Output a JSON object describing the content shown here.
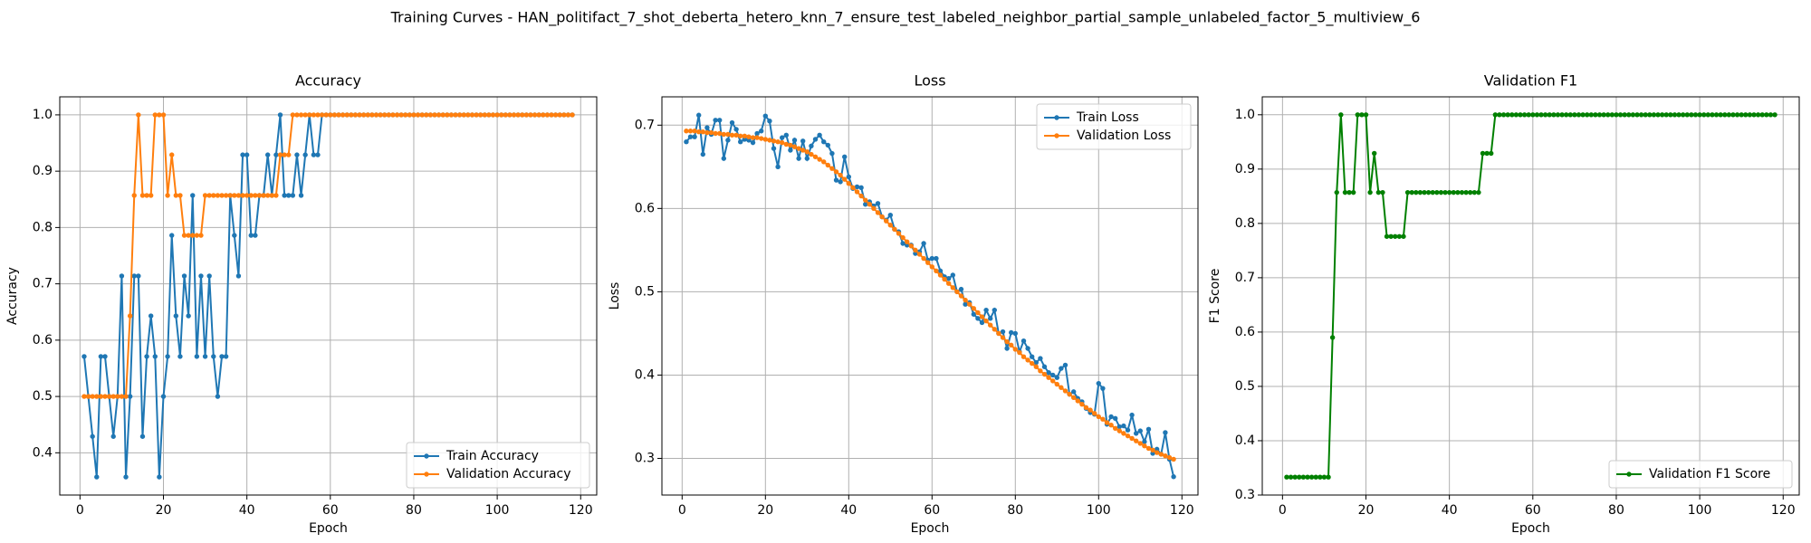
{
  "title": "Training Curves - HAN_politifact_7_shot_deberta_hetero_knn_7_ensure_test_labeled_neighbor_partial_sample_unlabeled_factor_5_multiview_6",
  "chart_data": [
    {
      "type": "line",
      "title": "Accuracy",
      "xlabel": "Epoch",
      "ylabel": "Accuracy",
      "grid": true,
      "legend": "lower right",
      "xlim": [
        -4.85,
        123.85
      ],
      "xticks": [
        0,
        20,
        40,
        60,
        80,
        100,
        120
      ],
      "ylim": [
        0.325,
        1.032
      ],
      "yticks": [
        0.4,
        0.5,
        0.6,
        0.7,
        0.8,
        0.9,
        {
          "value": 1,
          "label": "1.0"
        }
      ],
      "x": [
        1,
        2,
        3,
        4,
        5,
        6,
        7,
        8,
        9,
        10,
        11,
        12,
        13,
        14,
        15,
        16,
        17,
        18,
        19,
        20,
        21,
        22,
        23,
        24,
        25,
        26,
        27,
        28,
        29,
        30,
        31,
        32,
        33,
        34,
        35,
        36,
        37,
        38,
        39,
        40,
        41,
        42,
        43,
        44,
        45,
        46,
        47,
        48,
        49,
        50,
        51,
        52,
        53,
        54,
        55,
        56,
        57,
        58,
        59,
        60,
        61,
        62,
        63,
        64,
        65,
        66,
        67,
        68,
        69,
        70,
        71,
        72,
        73,
        74,
        75,
        76,
        77,
        78,
        79,
        80,
        81,
        82,
        83,
        84,
        85,
        86,
        87,
        88,
        89,
        90,
        91,
        92,
        93,
        94,
        95,
        96,
        97,
        98,
        99,
        100,
        101,
        102,
        103,
        104,
        105,
        106,
        107,
        108,
        109,
        110,
        111,
        112,
        113,
        114,
        115,
        116,
        117,
        118
      ],
      "series": [
        {
          "name": "Train Accuracy",
          "color": "#1f77b4",
          "values": [
            0.571,
            0.5,
            0.429,
            0.357,
            0.571,
            0.571,
            0.5,
            0.429,
            0.5,
            0.714,
            0.357,
            0.5,
            0.714,
            0.714,
            0.429,
            0.571,
            0.643,
            0.571,
            0.357,
            0.5,
            0.571,
            0.786,
            0.643,
            0.571,
            0.714,
            0.643,
            0.857,
            0.571,
            0.714,
            0.571,
            0.714,
            0.571,
            0.5,
            0.571,
            0.571,
            0.857,
            0.786,
            0.714,
            0.929,
            0.929,
            0.786,
            0.786,
            0.857,
            0.857,
            0.929,
            0.857,
            0.929,
            1,
            0.857,
            0.857,
            0.857,
            0.929,
            0.857,
            0.929,
            1,
            0.929,
            0.929,
            1,
            1,
            1,
            1,
            1,
            1,
            1,
            1,
            1,
            1,
            1,
            1,
            1,
            1,
            1,
            1,
            1,
            1,
            1,
            1,
            1,
            1,
            1,
            1,
            1,
            1,
            1,
            1,
            1,
            1,
            1,
            1,
            1,
            1,
            1,
            1,
            1,
            1,
            1,
            1,
            1,
            1,
            1,
            1,
            1,
            1,
            1,
            1,
            1,
            1,
            1,
            1,
            1,
            1,
            1,
            1,
            1,
            1,
            1,
            1,
            1
          ]
        },
        {
          "name": "Validation Accuracy",
          "color": "#ff7f0e",
          "values": [
            0.5,
            0.5,
            0.5,
            0.5,
            0.5,
            0.5,
            0.5,
            0.5,
            0.5,
            0.5,
            0.5,
            0.643,
            0.857,
            1,
            0.857,
            0.857,
            0.857,
            1,
            1,
            1,
            0.857,
            0.929,
            0.857,
            0.857,
            0.786,
            0.786,
            0.786,
            0.786,
            0.786,
            0.857,
            0.857,
            0.857,
            0.857,
            0.857,
            0.857,
            0.857,
            0.857,
            0.857,
            0.857,
            0.857,
            0.857,
            0.857,
            0.857,
            0.857,
            0.857,
            0.857,
            0.857,
            0.929,
            0.929,
            0.929,
            1,
            1,
            1,
            1,
            1,
            1,
            1,
            1,
            1,
            1,
            1,
            1,
            1,
            1,
            1,
            1,
            1,
            1,
            1,
            1,
            1,
            1,
            1,
            1,
            1,
            1,
            1,
            1,
            1,
            1,
            1,
            1,
            1,
            1,
            1,
            1,
            1,
            1,
            1,
            1,
            1,
            1,
            1,
            1,
            1,
            1,
            1,
            1,
            1,
            1,
            1,
            1,
            1,
            1,
            1,
            1,
            1,
            1,
            1,
            1,
            1,
            1,
            1,
            1,
            1,
            1,
            1,
            1
          ]
        }
      ]
    },
    {
      "type": "line",
      "title": "Loss",
      "xlabel": "Epoch",
      "ylabel": "Loss",
      "grid": true,
      "legend": "upper right",
      "xlim": [
        -4.85,
        123.85
      ],
      "xticks": [
        0,
        20,
        40,
        60,
        80,
        100,
        120
      ],
      "ylim": [
        0.256,
        0.734
      ],
      "yticks": [
        0.3,
        0.4,
        0.5,
        0.6,
        0.7
      ],
      "x": [
        1,
        2,
        3,
        4,
        5,
        6,
        7,
        8,
        9,
        10,
        11,
        12,
        13,
        14,
        15,
        16,
        17,
        18,
        19,
        20,
        21,
        22,
        23,
        24,
        25,
        26,
        27,
        28,
        29,
        30,
        31,
        32,
        33,
        34,
        35,
        36,
        37,
        38,
        39,
        40,
        41,
        42,
        43,
        44,
        45,
        46,
        47,
        48,
        49,
        50,
        51,
        52,
        53,
        54,
        55,
        56,
        57,
        58,
        59,
        60,
        61,
        62,
        63,
        64,
        65,
        66,
        67,
        68,
        69,
        70,
        71,
        72,
        73,
        74,
        75,
        76,
        77,
        78,
        79,
        80,
        81,
        82,
        83,
        84,
        85,
        86,
        87,
        88,
        89,
        90,
        91,
        92,
        93,
        94,
        95,
        96,
        97,
        98,
        99,
        100,
        101,
        102,
        103,
        104,
        105,
        106,
        107,
        108,
        109,
        110,
        111,
        112,
        113,
        114,
        115,
        116,
        117,
        118
      ],
      "series": [
        {
          "name": "Train Loss",
          "color": "#1f77b4",
          "values": [
            0.68,
            0.686,
            0.686,
            0.712,
            0.665,
            0.697,
            0.689,
            0.706,
            0.706,
            0.66,
            0.682,
            0.703,
            0.695,
            0.68,
            0.683,
            0.682,
            0.679,
            0.69,
            0.693,
            0.711,
            0.705,
            0.672,
            0.65,
            0.685,
            0.688,
            0.67,
            0.682,
            0.66,
            0.681,
            0.66,
            0.675,
            0.683,
            0.688,
            0.68,
            0.676,
            0.666,
            0.634,
            0.632,
            0.662,
            0.638,
            0.624,
            0.626,
            0.625,
            0.605,
            0.608,
            0.603,
            0.606,
            0.59,
            0.586,
            0.592,
            0.575,
            0.572,
            0.558,
            0.556,
            0.556,
            0.546,
            0.548,
            0.558,
            0.538,
            0.54,
            0.54,
            0.525,
            0.518,
            0.516,
            0.52,
            0.5,
            0.503,
            0.485,
            0.487,
            0.473,
            0.468,
            0.463,
            0.478,
            0.468,
            0.478,
            0.45,
            0.452,
            0.432,
            0.451,
            0.45,
            0.428,
            0.441,
            0.432,
            0.422,
            0.415,
            0.42,
            0.41,
            0.403,
            0.4,
            0.397,
            0.408,
            0.412,
            0.377,
            0.38,
            0.372,
            0.368,
            0.36,
            0.355,
            0.353,
            0.39,
            0.384,
            0.341,
            0.35,
            0.348,
            0.338,
            0.339,
            0.334,
            0.352,
            0.33,
            0.333,
            0.32,
            0.335,
            0.306,
            0.311,
            0.305,
            0.331,
            0.299,
            0.278
          ]
        },
        {
          "name": "Validation Loss",
          "color": "#ff7f0e",
          "values": [
            0.693,
            0.693,
            0.693,
            0.692,
            0.692,
            0.691,
            0.691,
            0.69,
            0.69,
            0.689,
            0.689,
            0.688,
            0.688,
            0.687,
            0.687,
            0.686,
            0.685,
            0.685,
            0.684,
            0.683,
            0.682,
            0.681,
            0.68,
            0.679,
            0.677,
            0.676,
            0.674,
            0.672,
            0.67,
            0.668,
            0.665,
            0.662,
            0.659,
            0.656,
            0.652,
            0.648,
            0.644,
            0.64,
            0.635,
            0.63,
            0.625,
            0.62,
            0.615,
            0.61,
            0.605,
            0.6,
            0.595,
            0.59,
            0.585,
            0.58,
            0.575,
            0.57,
            0.565,
            0.56,
            0.555,
            0.55,
            0.545,
            0.54,
            0.535,
            0.53,
            0.525,
            0.52,
            0.515,
            0.51,
            0.505,
            0.5,
            0.495,
            0.49,
            0.485,
            0.48,
            0.475,
            0.47,
            0.465,
            0.46,
            0.455,
            0.45,
            0.445,
            0.44,
            0.436,
            0.431,
            0.427,
            0.422,
            0.418,
            0.414,
            0.41,
            0.405,
            0.401,
            0.397,
            0.393,
            0.389,
            0.385,
            0.381,
            0.377,
            0.373,
            0.369,
            0.365,
            0.361,
            0.358,
            0.354,
            0.35,
            0.347,
            0.343,
            0.34,
            0.336,
            0.333,
            0.33,
            0.327,
            0.324,
            0.321,
            0.318,
            0.315,
            0.312,
            0.31,
            0.307,
            0.305,
            0.303,
            0.301,
            0.299
          ]
        }
      ]
    },
    {
      "type": "line",
      "title": "Validation F1",
      "xlabel": "Epoch",
      "ylabel": "F1 Score",
      "grid": true,
      "legend": "lower right",
      "xlim": [
        -4.85,
        123.85
      ],
      "xticks": [
        0,
        20,
        40,
        60,
        80,
        100,
        120
      ],
      "ylim": [
        0.3,
        1.033
      ],
      "yticks": [
        0.3,
        0.4,
        0.5,
        0.6,
        0.7,
        0.8,
        0.9,
        {
          "value": 1,
          "label": "1.0"
        }
      ],
      "x": [
        1,
        2,
        3,
        4,
        5,
        6,
        7,
        8,
        9,
        10,
        11,
        12,
        13,
        14,
        15,
        16,
        17,
        18,
        19,
        20,
        21,
        22,
        23,
        24,
        25,
        26,
        27,
        28,
        29,
        30,
        31,
        32,
        33,
        34,
        35,
        36,
        37,
        38,
        39,
        40,
        41,
        42,
        43,
        44,
        45,
        46,
        47,
        48,
        49,
        50,
        51,
        52,
        53,
        54,
        55,
        56,
        57,
        58,
        59,
        60,
        61,
        62,
        63,
        64,
        65,
        66,
        67,
        68,
        69,
        70,
        71,
        72,
        73,
        74,
        75,
        76,
        77,
        78,
        79,
        80,
        81,
        82,
        83,
        84,
        85,
        86,
        87,
        88,
        89,
        90,
        91,
        92,
        93,
        94,
        95,
        96,
        97,
        98,
        99,
        100,
        101,
        102,
        103,
        104,
        105,
        106,
        107,
        108,
        109,
        110,
        111,
        112,
        113,
        114,
        115,
        116,
        117,
        118
      ],
      "series": [
        {
          "name": "Validation F1 Score",
          "color": "#008000",
          "values": [
            0.333,
            0.333,
            0.333,
            0.333,
            0.333,
            0.333,
            0.333,
            0.333,
            0.333,
            0.333,
            0.333,
            0.59,
            0.857,
            1,
            0.857,
            0.857,
            0.857,
            1,
            1,
            1,
            0.857,
            0.929,
            0.857,
            0.857,
            0.776,
            0.776,
            0.776,
            0.776,
            0.776,
            0.857,
            0.857,
            0.857,
            0.857,
            0.857,
            0.857,
            0.857,
            0.857,
            0.857,
            0.857,
            0.857,
            0.857,
            0.857,
            0.857,
            0.857,
            0.857,
            0.857,
            0.857,
            0.929,
            0.929,
            0.929,
            1,
            1,
            1,
            1,
            1,
            1,
            1,
            1,
            1,
            1,
            1,
            1,
            1,
            1,
            1,
            1,
            1,
            1,
            1,
            1,
            1,
            1,
            1,
            1,
            1,
            1,
            1,
            1,
            1,
            1,
            1,
            1,
            1,
            1,
            1,
            1,
            1,
            1,
            1,
            1,
            1,
            1,
            1,
            1,
            1,
            1,
            1,
            1,
            1,
            1,
            1,
            1,
            1,
            1,
            1,
            1,
            1,
            1,
            1,
            1,
            1,
            1,
            1,
            1,
            1,
            1,
            1,
            1
          ]
        }
      ]
    }
  ]
}
